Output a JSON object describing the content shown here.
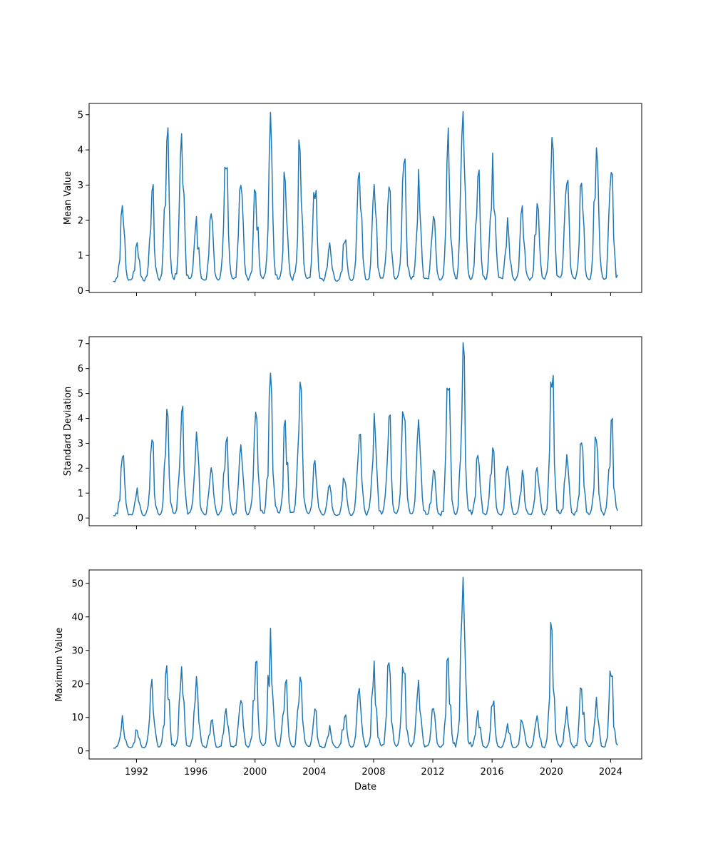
{
  "figure": {
    "background": "#ffffff",
    "line_color": "#1f77b4",
    "axis_color": "#000000"
  },
  "chart_data": [
    {
      "type": "line",
      "title": "",
      "ylabel": "Mean Value",
      "xlabel": "",
      "grid": false,
      "legend": "none",
      "line_color": "#1f77b4",
      "sampling": "monthly",
      "seasonal_peak_month": "January",
      "data_start_x": 1990.45,
      "data_end_x": 2024.48,
      "xlim": [
        1988.8,
        2026.1
      ],
      "ylim": [
        -0.05,
        5.32
      ],
      "x_ticks": [
        1992,
        1996,
        2000,
        2004,
        2008,
        2012,
        2016,
        2020,
        2024
      ],
      "x_tick_labels_visible": false,
      "y_ticks": [
        0,
        1,
        2,
        3,
        4,
        5
      ],
      "baseline": 0.25,
      "years": [
        1990,
        1991,
        1992,
        1993,
        1994,
        1995,
        1996,
        1997,
        1998,
        1999,
        2000,
        2001,
        2002,
        2003,
        2004,
        2005,
        2006,
        2007,
        2008,
        2009,
        2010,
        2011,
        2012,
        2013,
        2014,
        2015,
        2016,
        2017,
        2018,
        2019,
        2020,
        2021,
        2022,
        2023,
        2024
      ],
      "annual_peak_values": [
        0.5,
        2.4,
        1.35,
        2.8,
        4.2,
        4.4,
        2.1,
        2.15,
        3.45,
        2.95,
        2.75,
        5.05,
        3.1,
        3.9,
        2.6,
        1.35,
        1.35,
        3.35,
        3.0,
        2.9,
        3.55,
        3.4,
        2.1,
        4.55,
        5.0,
        3.2,
        3.9,
        2.05,
        2.4,
        2.45,
        4.3,
        3.0,
        3.0,
        4.0,
        3.35
      ]
    },
    {
      "type": "line",
      "title": "",
      "ylabel": "Standard Deviation",
      "xlabel": "",
      "grid": false,
      "legend": "none",
      "line_color": "#1f77b4",
      "sampling": "monthly",
      "seasonal_peak_month": "January",
      "data_start_x": 1990.45,
      "data_end_x": 2024.48,
      "xlim": [
        1988.8,
        2026.1
      ],
      "ylim": [
        -0.31,
        7.28
      ],
      "x_ticks": [
        1992,
        1996,
        2000,
        2004,
        2008,
        2012,
        2016,
        2020,
        2024
      ],
      "x_tick_labels_visible": false,
      "y_ticks": [
        0,
        1,
        2,
        3,
        4,
        5,
        6,
        7
      ],
      "baseline": 0.08,
      "years": [
        1990,
        1991,
        1992,
        1993,
        1994,
        1995,
        1996,
        1997,
        1998,
        1999,
        2000,
        2001,
        2002,
        2003,
        2004,
        2005,
        2006,
        2007,
        2008,
        2009,
        2010,
        2011,
        2012,
        2013,
        2014,
        2015,
        2016,
        2017,
        2018,
        2019,
        2020,
        2021,
        2022,
        2023,
        2024
      ],
      "annual_peak_values": [
        0.4,
        2.4,
        1.2,
        3.1,
        4.35,
        4.2,
        3.4,
        2.0,
        3.0,
        2.9,
        4.2,
        5.75,
        3.9,
        5.35,
        2.3,
        1.3,
        1.5,
        3.3,
        4.15,
        4.0,
        4.05,
        3.9,
        1.9,
        5.05,
        6.95,
        2.5,
        2.8,
        2.05,
        1.9,
        2.0,
        5.15,
        2.5,
        3.0,
        3.05,
        3.9
      ]
    },
    {
      "type": "line",
      "title": "",
      "ylabel": "Maximum Value",
      "xlabel": "Date",
      "grid": false,
      "legend": "none",
      "line_color": "#1f77b4",
      "sampling": "monthly",
      "seasonal_peak_month": "January",
      "data_start_x": 1990.45,
      "data_end_x": 2024.48,
      "xlim": [
        1988.8,
        2026.1
      ],
      "ylim": [
        -2.4,
        54.0
      ],
      "x_ticks": [
        1992,
        1996,
        2000,
        2004,
        2008,
        2012,
        2016,
        2020,
        2024
      ],
      "x_tick_labels_visible": true,
      "y_ticks": [
        0,
        10,
        20,
        30,
        40,
        50
      ],
      "baseline": 0.8,
      "years": [
        1990,
        1991,
        1992,
        1993,
        1994,
        1995,
        1996,
        1997,
        1998,
        1999,
        2000,
        2001,
        2002,
        2003,
        2004,
        2005,
        2006,
        2007,
        2008,
        2009,
        2010,
        2011,
        2012,
        2013,
        2014,
        2015,
        2016,
        2017,
        2018,
        2019,
        2020,
        2021,
        2022,
        2023,
        2024
      ],
      "annual_peak_values": [
        2,
        10.5,
        6,
        21,
        25,
        25,
        22,
        9,
        12.5,
        15,
        26,
        36.5,
        20,
        22,
        12.5,
        7.5,
        10,
        18.5,
        26.5,
        26,
        23,
        21,
        12.5,
        27.5,
        51.5,
        12,
        13.5,
        8,
        8.5,
        10.5,
        35.5,
        13,
        18.5,
        16,
        22
      ]
    }
  ]
}
